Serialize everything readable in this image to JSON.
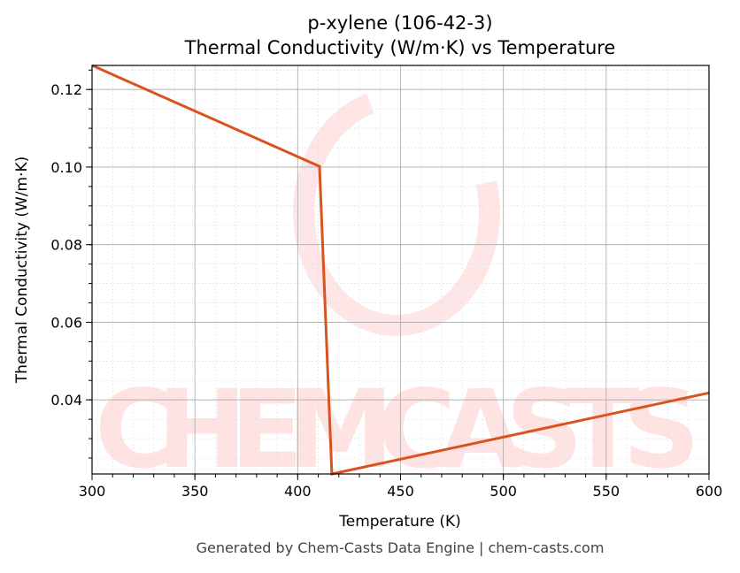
{
  "chart_data": {
    "type": "line",
    "title": "p-xylene (106-42-3)",
    "subtitle": "Thermal Conductivity (W/m·K) vs Temperature",
    "xlabel": "Temperature (K)",
    "ylabel": "Thermal Conductivity (W/m·K)",
    "xlim": [
      300,
      600
    ],
    "ylim": [
      0.0209,
      0.1262
    ],
    "xticks": [
      "300",
      "350",
      "400",
      "450",
      "500",
      "550",
      "600"
    ],
    "yticks": [
      "0.04",
      "0.06",
      "0.08",
      "0.10",
      "0.12"
    ],
    "grid": true,
    "series": [
      {
        "color": "#d9531e",
        "x": [
          300,
          410.6,
          416.6,
          600
        ],
        "y": [
          0.1262,
          0.1002,
          0.0209,
          0.0418
        ]
      }
    ],
    "watermark": "CHEMCASTS",
    "footer": "Generated by Chem-Casts Data Engine | chem-casts.com"
  }
}
